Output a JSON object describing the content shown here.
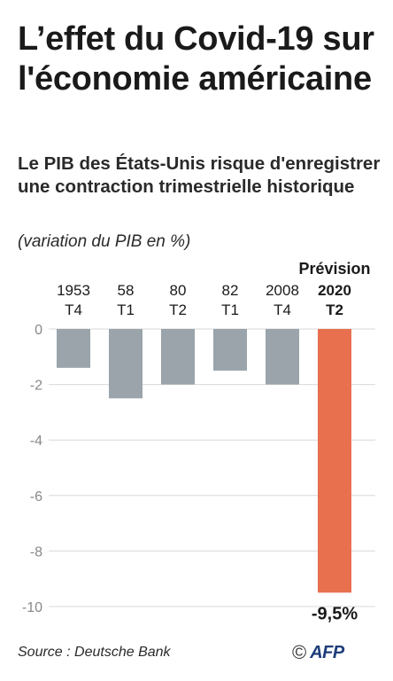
{
  "title": "L’effet du Covid-19 sur l'économie américaine",
  "subtitle": "Le PIB des États-Unis risque d'enregistrer une contraction trimestrielle historique",
  "unit": "(variation du PIB en %)",
  "source": "Source : Deutsche Bank",
  "logo": {
    "copyright": "©",
    "text": "AFP",
    "icon": "afp-logo"
  },
  "colors": {
    "bar": "#9aa4aa",
    "highlight": "#e8704f",
    "grid": "#d8d8d8",
    "tick": "#888888",
    "text": "#1a1a1a"
  },
  "chart_data": {
    "type": "bar",
    "categories": [
      {
        "line1": "1953",
        "line2": "T4",
        "bold": false,
        "note": ""
      },
      {
        "line1": "58",
        "line2": "T1",
        "bold": false,
        "note": ""
      },
      {
        "line1": "80",
        "line2": "T2",
        "bold": false,
        "note": ""
      },
      {
        "line1": "82",
        "line2": "T1",
        "bold": false,
        "note": ""
      },
      {
        "line1": "2008",
        "line2": "T4",
        "bold": false,
        "note": ""
      },
      {
        "line1": "2020",
        "line2": "T2",
        "bold": true,
        "note": "Prévision"
      }
    ],
    "values": [
      -1.4,
      -2.5,
      -2.0,
      -1.5,
      -2.0,
      -9.5
    ],
    "highlight_index": 5,
    "data_labels": [
      "",
      "",
      "",
      "",
      "",
      "-9,5%"
    ],
    "ylim": [
      -10,
      0
    ],
    "yticks": [
      0,
      -2,
      -4,
      -6,
      -8,
      -10
    ],
    "ytick_labels": [
      "0",
      "-2",
      "-4",
      "-6",
      "-8",
      "-10"
    ],
    "grid": true,
    "legend": "none"
  }
}
